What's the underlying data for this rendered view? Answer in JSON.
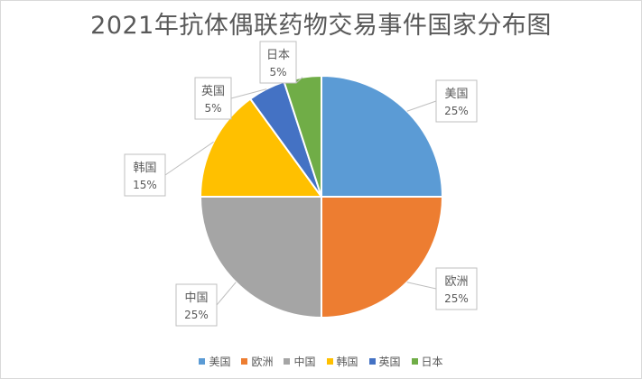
{
  "chart_data": {
    "type": "pie",
    "title": "2021年抗体偶联药物交易事件国家分布图",
    "legend_position": "bottom",
    "slices": [
      {
        "label": "美国",
        "value": 25,
        "value_label": "25%",
        "color": "#5b9bd5"
      },
      {
        "label": "欧洲",
        "value": 25,
        "value_label": "25%",
        "color": "#ed7d31"
      },
      {
        "label": "中国",
        "value": 25,
        "value_label": "25%",
        "color": "#a5a5a5"
      },
      {
        "label": "韩国",
        "value": 15,
        "value_label": "15%",
        "color": "#ffc000"
      },
      {
        "label": "英国",
        "value": 5,
        "value_label": "5%",
        "color": "#4472c4"
      },
      {
        "label": "日本",
        "value": 5,
        "value_label": "5%",
        "color": "#70ad47"
      }
    ]
  }
}
